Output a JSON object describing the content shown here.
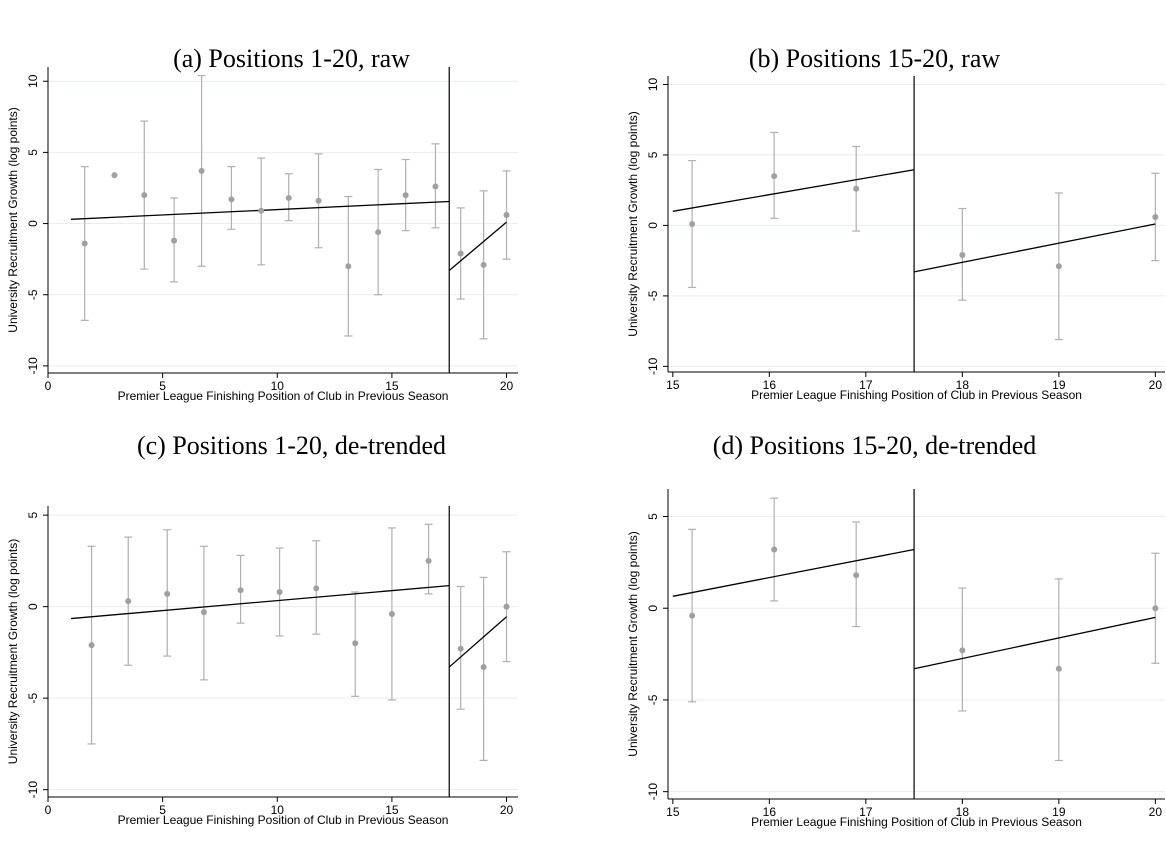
{
  "chart_data": [
    {
      "type": "scatter",
      "title": "(a) Positions 1-20, raw",
      "xlabel": "Premier League Finishing Position of Club in Previous Season",
      "ylabel": "University Recruitment Growth (log points)",
      "xlim": [
        0,
        20.5
      ],
      "ylim": [
        -10.5,
        11
      ],
      "xticks": [
        0,
        5,
        10,
        15,
        20
      ],
      "yticks": [
        -10,
        -5,
        0,
        5,
        10
      ],
      "yticklabels": [
        "-10",
        "-5",
        "0",
        "5",
        "10"
      ],
      "grid": true,
      "cutoff": 17.5,
      "points": [
        {
          "x": 1.6,
          "y": -1.4,
          "lo": -6.8,
          "hi": 4.0
        },
        {
          "x": 2.9,
          "y": 3.4
        },
        {
          "x": 4.2,
          "y": 2.0,
          "lo": -3.2,
          "hi": 7.2
        },
        {
          "x": 5.5,
          "y": -1.2,
          "lo": -4.1,
          "hi": 1.8
        },
        {
          "x": 6.7,
          "y": 3.7,
          "lo": -3.0,
          "hi": 10.4
        },
        {
          "x": 8.0,
          "y": 1.7,
          "lo": -0.4,
          "hi": 4.0
        },
        {
          "x": 9.3,
          "y": 0.9,
          "lo": -2.9,
          "hi": 4.6
        },
        {
          "x": 10.5,
          "y": 1.8,
          "lo": 0.2,
          "hi": 3.5
        },
        {
          "x": 11.8,
          "y": 1.6,
          "lo": -1.7,
          "hi": 4.9
        },
        {
          "x": 13.1,
          "y": -3.0,
          "lo": -7.9,
          "hi": 1.9
        },
        {
          "x": 14.4,
          "y": -0.6,
          "lo": -5.0,
          "hi": 3.8
        },
        {
          "x": 15.6,
          "y": 2.0,
          "lo": -0.5,
          "hi": 4.5
        },
        {
          "x": 16.9,
          "y": 2.6,
          "lo": -0.3,
          "hi": 5.6
        },
        {
          "x": 18.0,
          "y": -2.1,
          "lo": -5.3,
          "hi": 1.1
        },
        {
          "x": 19.0,
          "y": -2.9,
          "lo": -8.1,
          "hi": 2.3
        },
        {
          "x": 20.0,
          "y": 0.6,
          "lo": -2.5,
          "hi": 3.7
        }
      ],
      "fit_left": [
        [
          1.0,
          0.3
        ],
        [
          17.5,
          1.55
        ]
      ],
      "fit_right": [
        [
          17.5,
          -3.3
        ],
        [
          20.0,
          0.1
        ]
      ]
    },
    {
      "type": "scatter",
      "title": "(b) Positions 15-20, raw",
      "xlabel": "Premier League Finishing Position of Club in Previous Season",
      "ylabel": "University Recruitment Growth (log points)",
      "xlim": [
        14.95,
        20.1
      ],
      "ylim": [
        -10.4,
        10.6
      ],
      "xticks": [
        15,
        16,
        17,
        18,
        19,
        20
      ],
      "yticks": [
        -10,
        -5,
        0,
        5,
        10
      ],
      "yticklabels": [
        "-10",
        "-5",
        "0",
        "5",
        "10"
      ],
      "grid": true,
      "cutoff": 17.5,
      "points": [
        {
          "x": 15.2,
          "y": 0.1,
          "lo": -4.4,
          "hi": 4.6
        },
        {
          "x": 16.05,
          "y": 3.5,
          "lo": 0.5,
          "hi": 6.6
        },
        {
          "x": 16.9,
          "y": 2.6,
          "lo": -0.4,
          "hi": 5.6
        },
        {
          "x": 18.0,
          "y": -2.1,
          "lo": -5.3,
          "hi": 1.2
        },
        {
          "x": 19.0,
          "y": -2.9,
          "lo": -8.1,
          "hi": 2.3
        },
        {
          "x": 20.0,
          "y": 0.6,
          "lo": -2.5,
          "hi": 3.7
        }
      ],
      "fit_left": [
        [
          15.0,
          1.0
        ],
        [
          17.5,
          3.95
        ]
      ],
      "fit_right": [
        [
          17.5,
          -3.3
        ],
        [
          20.0,
          0.1
        ]
      ]
    },
    {
      "type": "scatter",
      "title": "(c) Positions 1-20, de-trended",
      "xlabel": "Premier League Finishing Position of Club in Previous Season",
      "ylabel": "University Recruitment Growth (log points)",
      "xlim": [
        0,
        20.5
      ],
      "ylim": [
        -10.4,
        5.5
      ],
      "xticks": [
        0,
        5,
        10,
        15,
        20
      ],
      "yticks": [
        -10,
        -5,
        0,
        5
      ],
      "yticklabels": [
        "-10",
        "-5",
        "0",
        "5"
      ],
      "grid": true,
      "cutoff": 17.5,
      "points": [
        {
          "x": 1.9,
          "y": -2.1,
          "lo": -7.5,
          "hi": 3.3
        },
        {
          "x": 3.5,
          "y": 0.3,
          "lo": -3.2,
          "hi": 3.8
        },
        {
          "x": 5.2,
          "y": 0.7,
          "lo": -2.7,
          "hi": 4.2
        },
        {
          "x": 6.8,
          "y": -0.3,
          "lo": -4.0,
          "hi": 3.3
        },
        {
          "x": 8.4,
          "y": 0.9,
          "lo": -0.9,
          "hi": 2.8
        },
        {
          "x": 10.1,
          "y": 0.8,
          "lo": -1.6,
          "hi": 3.2
        },
        {
          "x": 11.7,
          "y": 1.0,
          "lo": -1.5,
          "hi": 3.6
        },
        {
          "x": 13.4,
          "y": -2.0,
          "lo": -4.9,
          "hi": 0.8
        },
        {
          "x": 15.0,
          "y": -0.4,
          "lo": -5.1,
          "hi": 4.3
        },
        {
          "x": 16.6,
          "y": 2.5,
          "lo": 0.7,
          "hi": 4.5
        },
        {
          "x": 18.0,
          "y": -2.3,
          "lo": -5.6,
          "hi": 1.1
        },
        {
          "x": 19.0,
          "y": -3.3,
          "lo": -8.4,
          "hi": 1.6
        },
        {
          "x": 20.0,
          "y": 0.0,
          "lo": -3.0,
          "hi": 3.0
        }
      ],
      "fit_left": [
        [
          1.0,
          -0.65
        ],
        [
          17.5,
          1.15
        ]
      ],
      "fit_right": [
        [
          17.5,
          -3.3
        ],
        [
          20.0,
          -0.55
        ]
      ]
    },
    {
      "type": "scatter",
      "title": "(d) Positions 15-20, de-trended",
      "xlabel": "Premier League Finishing Position of Club in Previous Season",
      "ylabel": "University Recruitment Growth (log points)",
      "xlim": [
        14.95,
        20.1
      ],
      "ylim": [
        -10.4,
        6.5
      ],
      "xticks": [
        15,
        16,
        17,
        18,
        19,
        20
      ],
      "yticks": [
        -10,
        -5,
        0,
        5
      ],
      "yticklabels": [
        "-10",
        "-5",
        "0",
        "5"
      ],
      "grid": true,
      "cutoff": 17.5,
      "points": [
        {
          "x": 15.2,
          "y": -0.4,
          "lo": -5.1,
          "hi": 4.3
        },
        {
          "x": 16.05,
          "y": 3.2,
          "lo": 0.4,
          "hi": 6.0
        },
        {
          "x": 16.9,
          "y": 1.8,
          "lo": -1.0,
          "hi": 4.7
        },
        {
          "x": 18.0,
          "y": -2.3,
          "lo": -5.6,
          "hi": 1.1
        },
        {
          "x": 19.0,
          "y": -3.3,
          "lo": -8.3,
          "hi": 1.6
        },
        {
          "x": 20.0,
          "y": 0.0,
          "lo": -3.0,
          "hi": 3.0
        }
      ],
      "fit_left": [
        [
          15.0,
          0.65
        ],
        [
          17.5,
          3.2
        ]
      ],
      "fit_right": [
        [
          17.5,
          -3.3
        ],
        [
          20.0,
          -0.5
        ]
      ]
    }
  ],
  "colors": {
    "points": "#a0a0a0",
    "error_bars": "#b0b0b0",
    "fit_line": "#000000",
    "grid": "#e8edf2",
    "axis": "#000000"
  }
}
